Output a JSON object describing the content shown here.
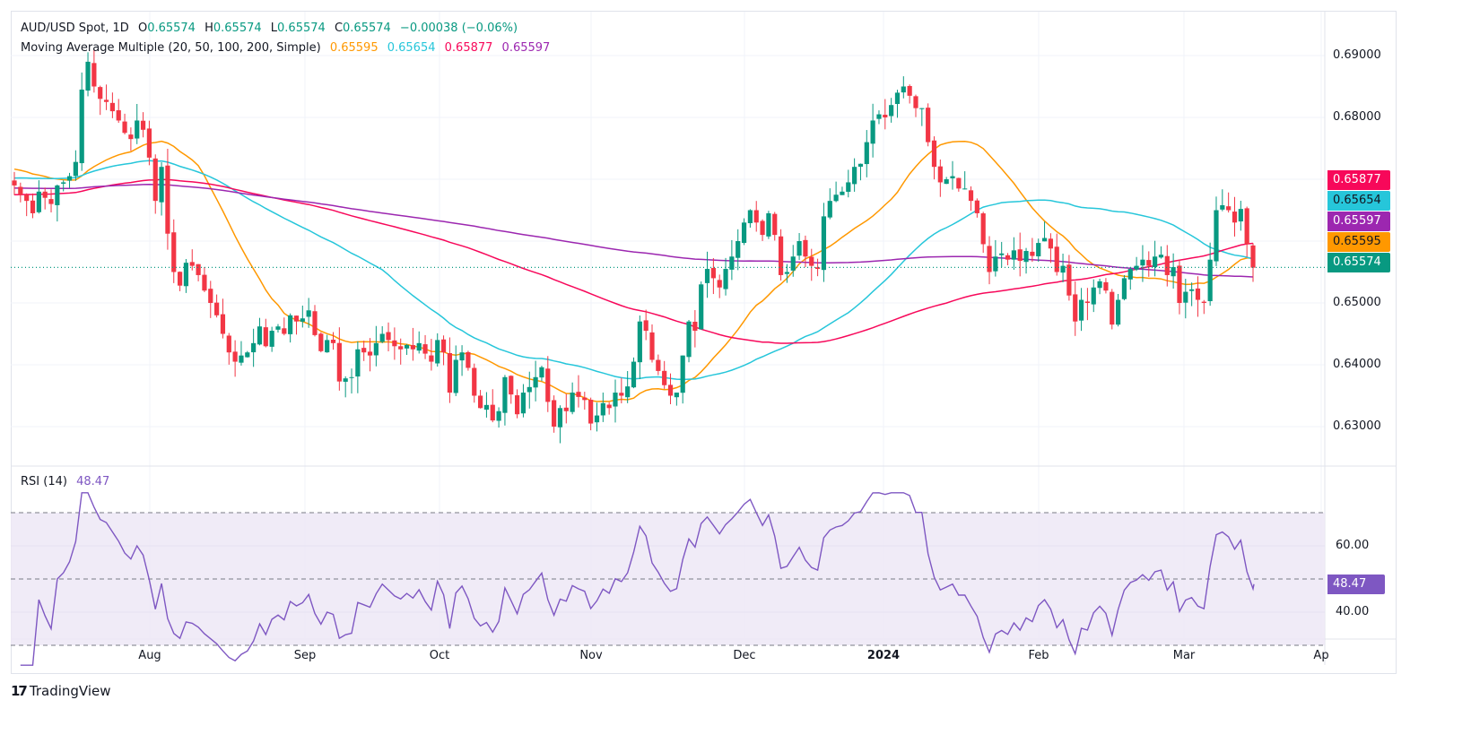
{
  "header": {
    "symbol": "AUD/USD Spot, 1D",
    "open_label": "O",
    "open": "0.65574",
    "high_label": "H",
    "high": "0.65574",
    "low_label": "L",
    "low": "0.65574",
    "close_label": "C",
    "close": "0.65574",
    "change": "−0.00038 (−0.06%)"
  },
  "ma_legend": {
    "label": "Moving Average Multiple (20, 50, 100, 200, Simple)",
    "ma20": "0.65595",
    "ma50": "0.65654",
    "ma100": "0.65877",
    "ma200": "0.65597"
  },
  "rsi_legend": {
    "label": "RSI (14)",
    "value": "48.47"
  },
  "price_tags": [
    {
      "name": "ma100-tag",
      "value": "0.65877",
      "bg": "#f7085a",
      "fg": "#ffffff"
    },
    {
      "name": "ma50-tag",
      "value": "0.65654",
      "bg": "#26c6da",
      "fg": "#131722"
    },
    {
      "name": "ma200-tag",
      "value": "0.65597",
      "bg": "#9c27b0",
      "fg": "#ffffff"
    },
    {
      "name": "ma20-tag",
      "value": "0.65595",
      "bg": "#ff9800",
      "fg": "#131722"
    },
    {
      "name": "last-price-tag",
      "value": "0.65574",
      "bg": "#089981",
      "fg": "#ffffff"
    }
  ],
  "rsi_tag": {
    "value": "48.47",
    "bg": "#7e57c2",
    "fg": "#ffffff"
  },
  "branding": {
    "logo_text": "TradingView",
    "logo_mark": "17"
  },
  "colors": {
    "up": "#089981",
    "down": "#f23645",
    "ma20": "#ff9800",
    "ma50": "#26c6da",
    "ma100": "#f7085a",
    "ma200": "#9c27b0",
    "rsi": "#7e57c2",
    "rsi_band": "#ede7f6"
  },
  "chart_data": [
    {
      "type": "candlestick",
      "title": "AUD/USD Spot, 1D",
      "yaxis": {
        "ticks": [
          "0.69000",
          "0.68000",
          "0.67000",
          "0.66000",
          "0.65000",
          "0.64000",
          "0.63000"
        ],
        "range": [
          0.6215,
          0.6935
        ]
      },
      "xaxis": {
        "ticks": [
          "Aug",
          "Sep",
          "Oct",
          "Nov",
          "Dec",
          "2024",
          "Feb",
          "Mar",
          "Ap"
        ]
      },
      "last_price": 0.65574,
      "ohlc_closes": [
        0.669,
        0.6675,
        0.6665,
        0.6645,
        0.668,
        0.667,
        0.666,
        0.669,
        0.6695,
        0.6705,
        0.6728,
        0.6845,
        0.689,
        0.685,
        0.683,
        0.6825,
        0.681,
        0.6795,
        0.6775,
        0.6765,
        0.6795,
        0.678,
        0.6735,
        0.6665,
        0.672,
        0.6612,
        0.655,
        0.6528,
        0.6565,
        0.656,
        0.6545,
        0.652,
        0.65,
        0.648,
        0.645,
        0.642,
        0.6405,
        0.6415,
        0.642,
        0.6435,
        0.6462,
        0.643,
        0.6455,
        0.6462,
        0.645,
        0.648,
        0.647,
        0.6475,
        0.6488,
        0.6448,
        0.6422,
        0.644,
        0.6435,
        0.6373,
        0.6378,
        0.638,
        0.6425,
        0.642,
        0.6415,
        0.6435,
        0.645,
        0.644,
        0.643,
        0.6425,
        0.6432,
        0.6425,
        0.6435,
        0.6418,
        0.6405,
        0.644,
        0.642,
        0.6355,
        0.6408,
        0.642,
        0.6395,
        0.635,
        0.633,
        0.6335,
        0.631,
        0.6325,
        0.638,
        0.6352,
        0.632,
        0.6355,
        0.6364,
        0.638,
        0.6396,
        0.634,
        0.63,
        0.633,
        0.6325,
        0.6355,
        0.6348,
        0.6343,
        0.6305,
        0.6318,
        0.6338,
        0.633,
        0.6355,
        0.635,
        0.6365,
        0.6405,
        0.647,
        0.6455,
        0.6408,
        0.639,
        0.6367,
        0.635,
        0.6355,
        0.6415,
        0.647,
        0.6455,
        0.653,
        0.6555,
        0.654,
        0.6525,
        0.6555,
        0.6575,
        0.66,
        0.663,
        0.665,
        0.663,
        0.661,
        0.6645,
        0.661,
        0.6545,
        0.655,
        0.6575,
        0.66,
        0.6575,
        0.656,
        0.6555,
        0.664,
        0.6665,
        0.6675,
        0.668,
        0.6695,
        0.672,
        0.6725,
        0.676,
        0.6795,
        0.6805,
        0.68,
        0.682,
        0.684,
        0.685,
        0.6835,
        0.6815,
        0.6815,
        0.676,
        0.672,
        0.6695,
        0.67,
        0.6705,
        0.6685,
        0.6685,
        0.6665,
        0.6645,
        0.6595,
        0.655,
        0.6575,
        0.658,
        0.657,
        0.6585,
        0.6568,
        0.6584,
        0.6576,
        0.6597,
        0.6605,
        0.6588,
        0.655,
        0.656,
        0.6512,
        0.647,
        0.6505,
        0.65,
        0.6525,
        0.6535,
        0.652,
        0.6465,
        0.6505,
        0.654,
        0.6555,
        0.656,
        0.657,
        0.656,
        0.6575,
        0.6578,
        0.6545,
        0.6558,
        0.65,
        0.6518,
        0.6522,
        0.6505,
        0.65,
        0.657,
        0.665,
        0.6658,
        0.665,
        0.663,
        0.6652,
        0.6595,
        0.6557
      ]
    },
    {
      "type": "line",
      "title": "RSI (14)",
      "yaxis": {
        "ticks": [
          "60.00",
          "40.00"
        ],
        "bands": [
          30,
          70
        ],
        "midline": 50,
        "range": [
          22,
          78
        ]
      },
      "last_value": 48.47
    }
  ]
}
